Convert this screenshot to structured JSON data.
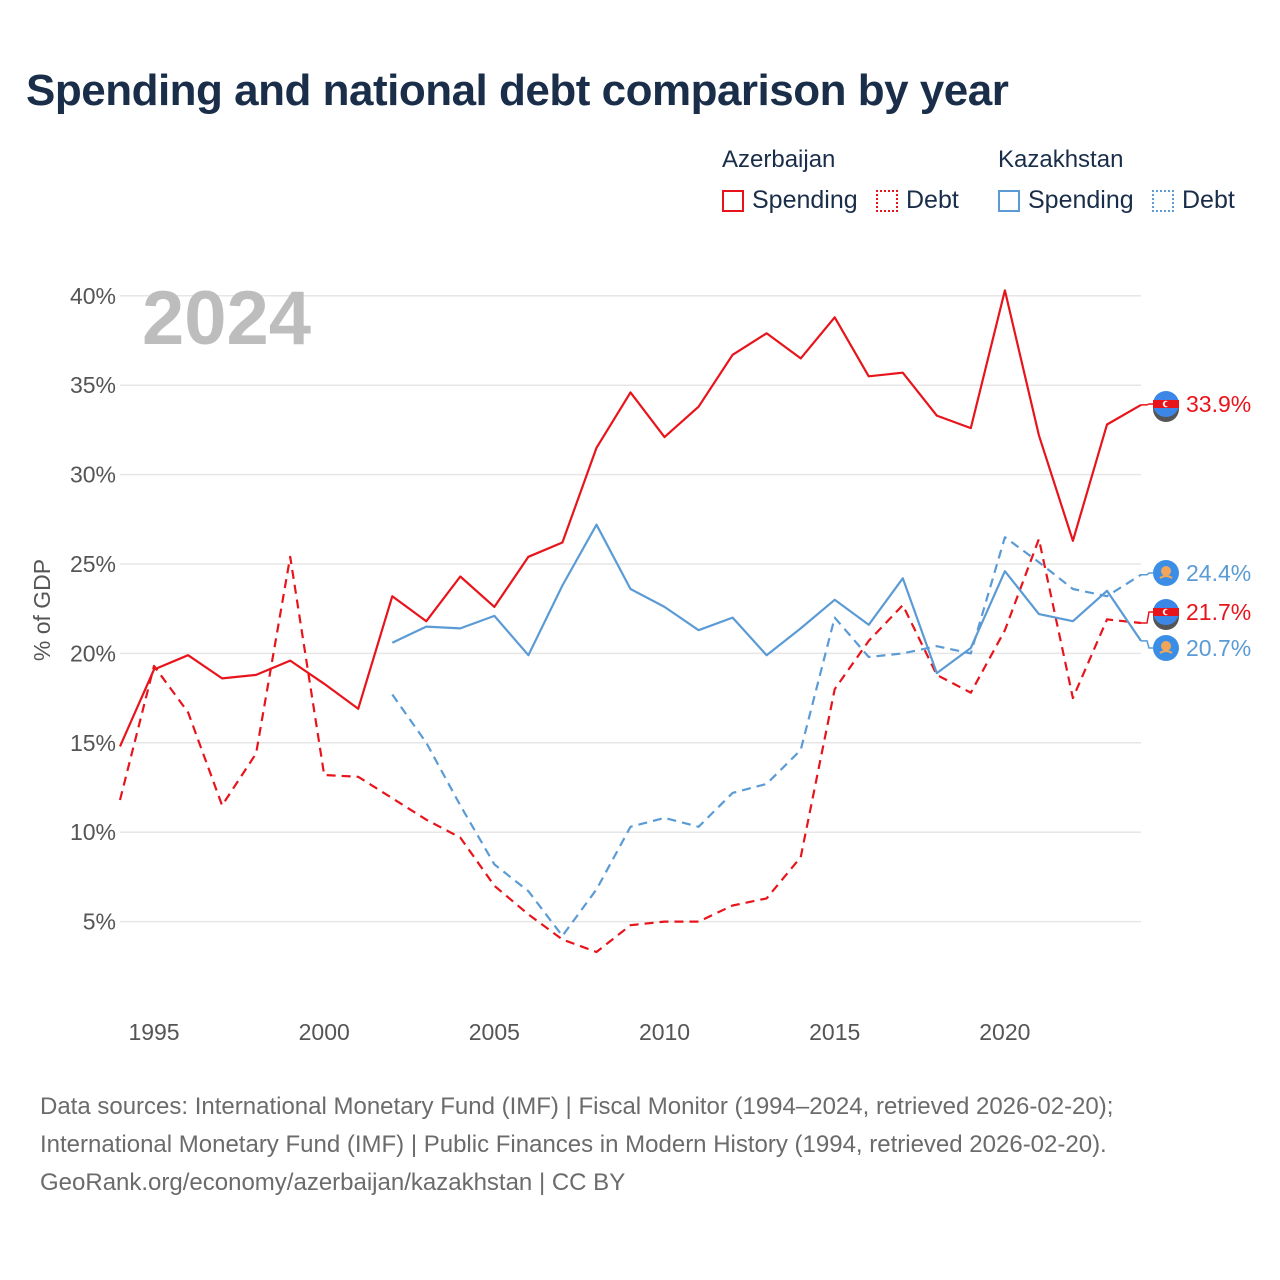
{
  "title": "Spending and national debt comparison by year",
  "legend": {
    "groups": [
      {
        "country": "Azerbaijan",
        "color": "#e8141b",
        "items": [
          {
            "label": "Spending",
            "style": "solid"
          },
          {
            "label": "Debt",
            "style": "dotted"
          }
        ]
      },
      {
        "country": "Kazakhstan",
        "color": "#5b9bd5",
        "items": [
          {
            "label": "Spending",
            "style": "solid"
          },
          {
            "label": "Debt",
            "style": "dotted"
          }
        ]
      }
    ]
  },
  "sources": [
    "Data sources: International Monetary Fund (IMF) | Fiscal Monitor (1994–2024, retrieved 2026-02-20);",
    "International Monetary Fund (IMF) | Public Finances in Modern History (1994, retrieved 2026-02-20).",
    "GeoRank.org/economy/azerbaijan/kazakhstan | CC BY"
  ],
  "chart_data": {
    "type": "line",
    "year_label": "2024",
    "ylabel": "% of GDP",
    "xlabel": "",
    "xlim": [
      1994,
      2024
    ],
    "ylim": [
      0,
      40.5
    ],
    "x_ticks": [
      1995,
      2000,
      2005,
      2010,
      2015,
      2020
    ],
    "y_ticks": [
      {
        "value": 5,
        "label": "5%"
      },
      {
        "value": 10,
        "label": "10%"
      },
      {
        "value": 15,
        "label": "15%"
      },
      {
        "value": 20,
        "label": "20%"
      },
      {
        "value": 25,
        "label": "25%"
      },
      {
        "value": 30,
        "label": "30%"
      },
      {
        "value": 35,
        "label": "35%"
      },
      {
        "value": 40,
        "label": "40%"
      }
    ],
    "grid": true,
    "series": [
      {
        "name": "Azerbaijan Spending",
        "color": "#e8141b",
        "dash": false,
        "end_label": "33.9%",
        "flag": "azerbaijan",
        "x": [
          1994,
          1995,
          1996,
          1997,
          1998,
          1999,
          2000,
          2001,
          2002,
          2003,
          2004,
          2005,
          2006,
          2007,
          2008,
          2009,
          2010,
          2011,
          2012,
          2013,
          2014,
          2015,
          2016,
          2017,
          2018,
          2019,
          2020,
          2021,
          2022,
          2023,
          2024
        ],
        "y": [
          14.8,
          19.1,
          19.9,
          18.6,
          18.8,
          19.6,
          18.3,
          16.9,
          23.2,
          21.8,
          24.3,
          22.6,
          25.4,
          26.2,
          31.5,
          34.6,
          32.1,
          33.8,
          36.7,
          37.9,
          36.5,
          38.8,
          35.5,
          35.7,
          33.3,
          32.6,
          40.3,
          32.2,
          26.3,
          32.8,
          33.9
        ]
      },
      {
        "name": "Azerbaijan Debt",
        "color": "#e8141b",
        "dash": true,
        "end_label": "21.7%",
        "flag": "azerbaijan",
        "x": [
          1994,
          1995,
          1996,
          1997,
          1998,
          1999,
          2000,
          2001,
          2002,
          2003,
          2004,
          2005,
          2006,
          2007,
          2008,
          2009,
          2010,
          2011,
          2012,
          2013,
          2014,
          2015,
          2016,
          2017,
          2018,
          2019,
          2020,
          2021,
          2022,
          2023,
          2024
        ],
        "y": [
          11.8,
          19.3,
          16.7,
          11.5,
          14.4,
          25.4,
          13.2,
          13.1,
          11.9,
          10.7,
          9.7,
          7.0,
          5.4,
          4.0,
          3.3,
          4.8,
          5.0,
          5.0,
          5.9,
          6.3,
          8.6,
          18.0,
          20.7,
          22.7,
          18.8,
          17.8,
          21.3,
          26.4,
          17.5,
          21.9,
          21.7
        ]
      },
      {
        "name": "Kazakhstan Spending",
        "color": "#5b9bd5",
        "dash": false,
        "end_label": "20.7%",
        "flag": "kazakhstan",
        "x": [
          2002,
          2003,
          2004,
          2005,
          2006,
          2007,
          2008,
          2009,
          2010,
          2011,
          2012,
          2013,
          2014,
          2015,
          2016,
          2017,
          2018,
          2019,
          2020,
          2021,
          2022,
          2023,
          2024
        ],
        "y": [
          20.6,
          21.5,
          21.4,
          22.1,
          19.9,
          23.8,
          27.2,
          23.6,
          22.6,
          21.3,
          22.0,
          19.9,
          21.4,
          23.0,
          21.6,
          24.2,
          18.9,
          20.3,
          24.6,
          22.2,
          21.8,
          23.5,
          20.7
        ]
      },
      {
        "name": "Kazakhstan Debt",
        "color": "#5b9bd5",
        "dash": true,
        "end_label": "24.4%",
        "flag": "kazakhstan",
        "x": [
          2002,
          2003,
          2004,
          2005,
          2006,
          2007,
          2008,
          2009,
          2010,
          2011,
          2012,
          2013,
          2014,
          2015,
          2016,
          2017,
          2018,
          2019,
          2020,
          2021,
          2022,
          2023,
          2024
        ],
        "y": [
          17.7,
          15.0,
          11.5,
          8.2,
          6.7,
          4.2,
          6.8,
          10.3,
          10.8,
          10.3,
          12.2,
          12.7,
          14.6,
          22.0,
          19.8,
          20.0,
          20.4,
          20.0,
          26.5,
          25.1,
          23.6,
          23.2,
          24.4
        ]
      }
    ]
  }
}
